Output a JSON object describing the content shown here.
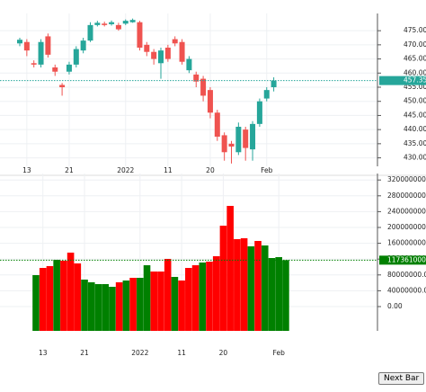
{
  "chart_data": [
    {
      "type": "candlestick",
      "categories": [
        null,
        "13",
        null,
        null,
        null,
        null,
        null,
        "21",
        null,
        null,
        null,
        null,
        null,
        null,
        null,
        "2022",
        null,
        null,
        null,
        null,
        null,
        "11",
        null,
        null,
        null,
        null,
        null,
        "20",
        null,
        null,
        null,
        null,
        null,
        null,
        null,
        "Feb",
        null
      ],
      "open": [
        470.5,
        471,
        463.5,
        463,
        473,
        462,
        455.8,
        460.5,
        463,
        468,
        471.5,
        477,
        477.5,
        477.3,
        477,
        477.5,
        478,
        478,
        470,
        467.5,
        463.5,
        469,
        472,
        471,
        461,
        459.5,
        458,
        454,
        446,
        438,
        435,
        432,
        440,
        433,
        442,
        451,
        455
      ],
      "high": [
        472.5,
        472,
        464.5,
        472,
        474,
        463,
        456.5,
        464,
        469.5,
        472.5,
        478,
        478.5,
        478.2,
        478.6,
        477.8,
        479,
        479.3,
        478.5,
        471,
        468.5,
        469,
        470,
        473,
        472,
        466,
        460.5,
        459,
        455,
        447,
        439,
        436,
        442.5,
        441,
        443,
        451,
        455,
        458.5
      ],
      "low": [
        469.5,
        466,
        462,
        462,
        465.5,
        459,
        452,
        459.5,
        462,
        467,
        471,
        476.5,
        476.5,
        476.8,
        475,
        477,
        477.8,
        468,
        466,
        463,
        458,
        464,
        469.5,
        463,
        460,
        455,
        450,
        444,
        436,
        429,
        428,
        431,
        429,
        429,
        441,
        450,
        453.5
      ],
      "close": [
        471.8,
        468,
        463,
        471,
        466.5,
        460.5,
        455,
        463,
        468.5,
        471.5,
        477,
        477.8,
        477,
        478,
        475.5,
        478.5,
        478.8,
        469,
        467.5,
        465,
        468,
        465,
        470.5,
        464,
        465,
        457,
        452,
        446,
        437.5,
        432,
        434,
        441,
        433.5,
        442,
        450,
        454,
        457.35
      ],
      "up_color": "#26a69a",
      "down_color": "#ef5350",
      "ylim": [
        427,
        479.5
      ],
      "yticks": [
        {
          "value": 430,
          "label": "430.00"
        },
        {
          "value": 435,
          "label": "435.00"
        },
        {
          "value": 440,
          "label": "440.00"
        },
        {
          "value": 445,
          "label": "445.00"
        },
        {
          "value": 450,
          "label": "450.00"
        },
        {
          "value": 455,
          "label": "455.00"
        },
        {
          "value": 460,
          "label": "460.00"
        },
        {
          "value": 465,
          "label": "465.00"
        },
        {
          "value": 470,
          "label": "470.00"
        },
        {
          "value": 475,
          "label": "475.00"
        }
      ],
      "last_value": {
        "value": 457.35,
        "label": "457.35"
      },
      "grid": true
    },
    {
      "type": "volume",
      "categories": [
        null,
        "13",
        null,
        null,
        null,
        null,
        null,
        "21",
        null,
        null,
        null,
        null,
        null,
        null,
        null,
        "2022",
        null,
        null,
        null,
        null,
        null,
        "11",
        null,
        null,
        null,
        null,
        null,
        "20",
        null,
        null,
        null,
        null,
        null,
        null,
        null,
        "Feb",
        null
      ],
      "values": [
        79500000,
        97700000,
        102300000,
        118200000,
        115900000,
        136400000,
        109100000,
        68200000,
        61400000,
        56800000,
        56800000,
        50000000,
        61400000,
        65900000,
        72700000,
        72700000,
        104500000,
        88600000,
        88600000,
        120500000,
        75000000,
        65900000,
        97700000,
        104500000,
        111400000,
        113600000,
        127300000,
        204500000,
        254500000,
        170500000,
        172700000,
        152300000,
        165900000,
        154500000,
        122700000,
        125000000,
        117361000
      ],
      "up_color": "#008000",
      "down_color": "#ff0000",
      "ylim": [
        -61400000,
        325000000
      ],
      "yticks": [
        {
          "value": 0,
          "label": "0.00"
        },
        {
          "value": 40000000,
          "label": "40000000.00"
        },
        {
          "value": 80000000,
          "label": "80000000.00"
        },
        {
          "value": 120000000,
          "label": "120000000.00"
        },
        {
          "value": 160000000,
          "label": "160000000.00"
        },
        {
          "value": 200000000,
          "label": "200000000.00"
        },
        {
          "value": 240000000,
          "label": "240000000.00"
        },
        {
          "value": 280000000,
          "label": "280000000.00"
        },
        {
          "value": 320000000,
          "label": "320000000.00"
        }
      ],
      "last_value": {
        "value": 117361000,
        "label": "117361000.00"
      },
      "grid": true
    }
  ],
  "button": {
    "label": "Next Bar"
  }
}
